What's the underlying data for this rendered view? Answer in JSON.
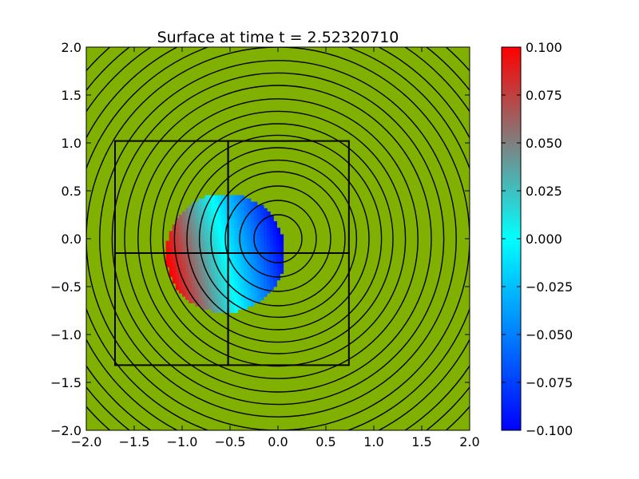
{
  "chart_data": {
    "type": "heatmap",
    "title": "Surface at time t =      2.52320710",
    "xlim": [
      -2.0,
      2.0
    ],
    "ylim": [
      -2.0,
      2.0
    ],
    "x_ticks": [
      -2.0,
      -1.5,
      -1.0,
      -0.5,
      0.0,
      0.5,
      1.0,
      1.5,
      2.0
    ],
    "y_ticks": [
      -2.0,
      -1.5,
      -1.0,
      -0.5,
      0.0,
      0.5,
      1.0,
      1.5,
      2.0
    ],
    "x_tick_labels": [
      "−2.0",
      "−1.5",
      "−1.0",
      "−0.5",
      "0.0",
      "0.5",
      "1.0",
      "1.5",
      "2.0"
    ],
    "y_tick_labels": [
      "−2.0",
      "−1.5",
      "−1.0",
      "−0.5",
      "0.0",
      "0.5",
      "1.0",
      "1.5",
      "2.0"
    ],
    "background_color": "#80b000",
    "colorbar": {
      "range": [
        -0.1,
        0.1
      ],
      "ticks": [
        0.1,
        0.075,
        0.05,
        0.025,
        0.0,
        -0.025,
        -0.05,
        -0.075,
        -0.1
      ],
      "tick_labels": [
        "0.100",
        "0.075",
        "0.050",
        "0.025",
        "0.000",
        "−0.025",
        "−0.050",
        "−0.075",
        "−0.100"
      ],
      "colors": [
        "#0000ff",
        "#00ffff",
        "#ff0000"
      ]
    },
    "surface_blob": {
      "center": [
        -0.55,
        -0.15
      ],
      "radius": 0.62,
      "value_at_left": 0.1,
      "value_at_right": -0.1
    },
    "contour_center": [
      0.0,
      0.0
    ],
    "contour_radii": [
      0.25,
      0.4,
      0.55,
      0.7,
      0.82,
      0.95,
      1.08,
      1.2,
      1.33,
      1.46,
      1.6,
      1.73,
      1.86,
      2.0,
      2.13,
      2.26,
      2.4,
      2.53,
      2.66
    ],
    "patch_boxes": [
      {
        "x0": -1.7,
        "x1": -0.52,
        "y0": -1.32,
        "y1": -0.15
      },
      {
        "x0": -0.52,
        "x1": 0.74,
        "y0": -1.32,
        "y1": -0.15
      },
      {
        "x0": -1.7,
        "x1": -0.52,
        "y0": -0.15,
        "y1": 1.02
      },
      {
        "x0": -0.52,
        "x1": 0.74,
        "y0": -0.15,
        "y1": 1.02
      }
    ]
  }
}
